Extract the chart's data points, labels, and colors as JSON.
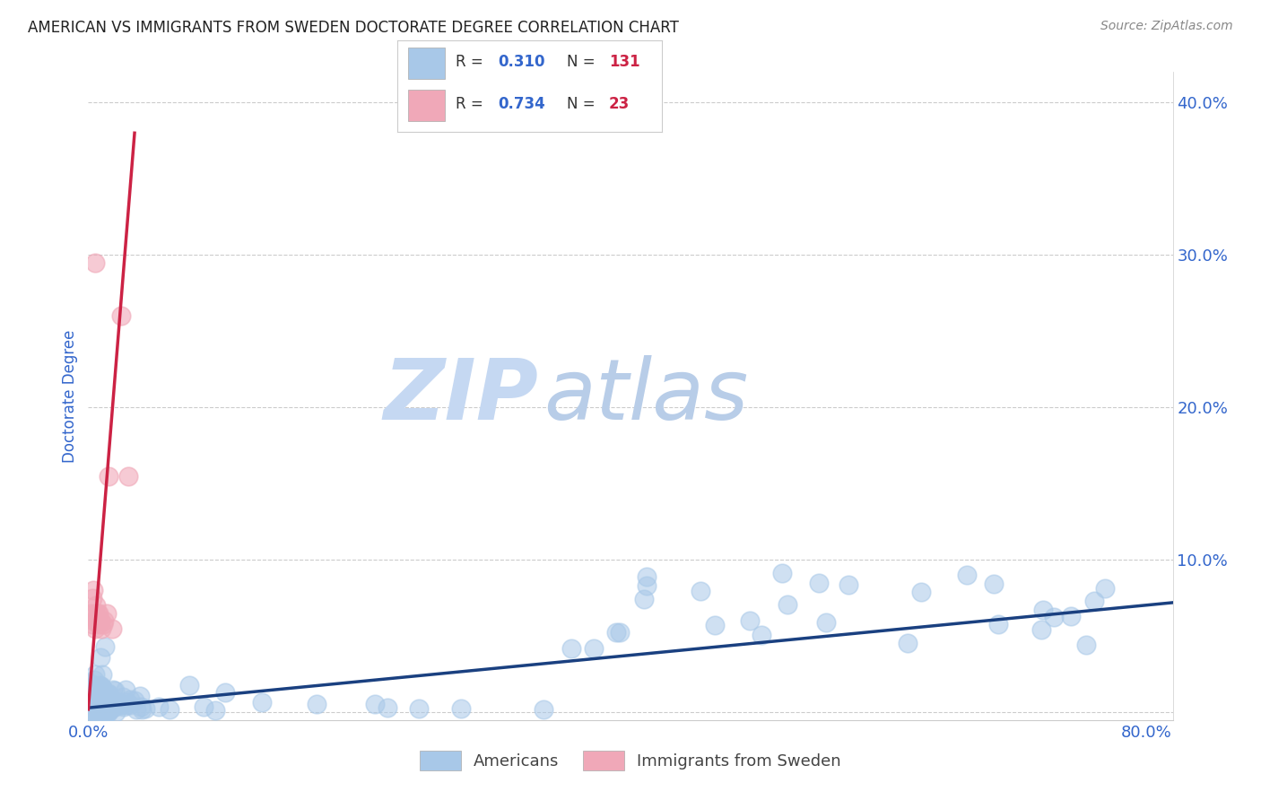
{
  "title": "AMERICAN VS IMMIGRANTS FROM SWEDEN DOCTORATE DEGREE CORRELATION CHART",
  "source_text": "Source: ZipAtlas.com",
  "ylabel": "Doctorate Degree",
  "xlim": [
    0.0,
    0.82
  ],
  "ylim": [
    -0.005,
    0.42
  ],
  "americans_R": 0.31,
  "americans_N": 131,
  "sweden_R": 0.734,
  "sweden_N": 23,
  "americans_color": "#a8c8e8",
  "americans_edge_color": "#a8c8e8",
  "americans_line_color": "#1a4080",
  "sweden_color": "#f0a8b8",
  "sweden_edge_color": "#f0a8b8",
  "sweden_line_color": "#cc2244",
  "legend_text_color": "#333333",
  "legend_RN_color": "#3366cc",
  "legend_N_value_color": "#cc2244",
  "watermark_zip_color": "#c8d8f0",
  "watermark_atlas_color": "#b0c8e8",
  "title_color": "#222222",
  "title_fontsize": 12,
  "axis_tick_color": "#3366cc",
  "source_color": "#888888",
  "ytick_positions": [
    0.0,
    0.1,
    0.2,
    0.3,
    0.4
  ],
  "ytick_labels": [
    "",
    "10.0%",
    "20.0%",
    "30.0%",
    "40.0%"
  ],
  "xtick_positions": [
    0.0,
    0.8
  ],
  "xtick_labels": [
    "0.0%",
    "80.0%"
  ],
  "am_line_x": [
    0.0,
    0.82
  ],
  "am_line_y": [
    0.003,
    0.072
  ],
  "sw_line_x": [
    0.0,
    0.035
  ],
  "sw_line_y": [
    0.002,
    0.38
  ]
}
